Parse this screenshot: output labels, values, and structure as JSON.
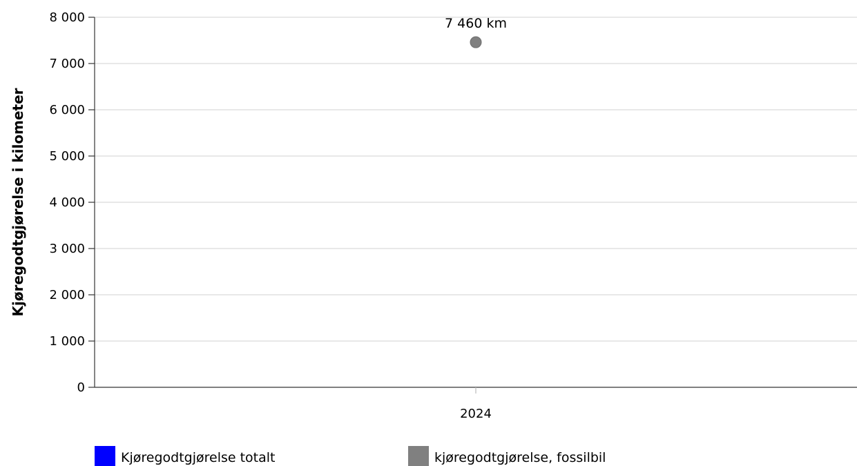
{
  "chart_data": {
    "type": "scatter",
    "title": "",
    "xlabel": "",
    "ylabel": "Kjøregodtgjørelse i kilometer",
    "categories": [
      "2024"
    ],
    "ylim": [
      0,
      8000
    ],
    "yticks": [
      {
        "value": 0,
        "label": "0"
      },
      {
        "value": 1000,
        "label": "1 000"
      },
      {
        "value": 2000,
        "label": "2 000"
      },
      {
        "value": 3000,
        "label": "3 000"
      },
      {
        "value": 4000,
        "label": "4 000"
      },
      {
        "value": 5000,
        "label": "5 000"
      },
      {
        "value": 6000,
        "label": "6 000"
      },
      {
        "value": 7000,
        "label": "7 000"
      },
      {
        "value": 8000,
        "label": "8 000"
      }
    ],
    "grid": true,
    "legend_position": "bottom-left",
    "series": [
      {
        "name": "Kjøregodtgjørelse totalt",
        "color": "#0000ff",
        "values": [
          null
        ],
        "labels": [
          ""
        ]
      },
      {
        "name": "kjøregodtgjørelse, fossilbil",
        "color": "#808080",
        "values": [
          7460
        ],
        "labels": [
          "7 460 km"
        ]
      }
    ]
  }
}
